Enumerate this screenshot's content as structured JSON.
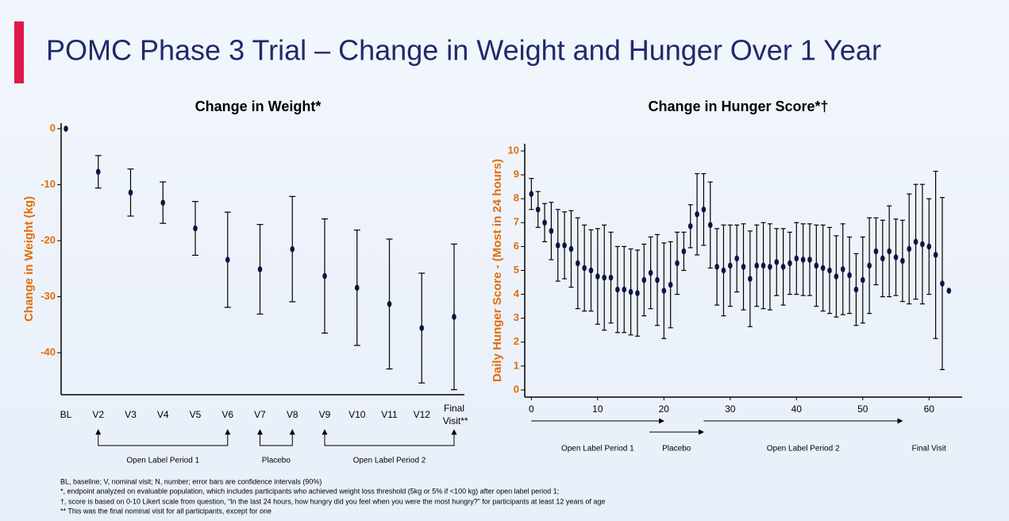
{
  "slide_title": "POMC Phase 3 Trial – Change in Weight and Hunger Over 1 Year",
  "chart_data": [
    {
      "type": "errorbar",
      "title": "Change in Weight*",
      "y_label": "Change in Weight (kg)",
      "categories": [
        "BL",
        "V2",
        "V3",
        "V4",
        "V5",
        "V6",
        "V7",
        "V8",
        "V9",
        "V10",
        "V11",
        "V12",
        "Final Visit**"
      ],
      "values": [
        0,
        -7.7,
        -11.4,
        -13.2,
        -17.8,
        -23.4,
        -25.1,
        -21.5,
        -26.3,
        -28.4,
        -31.3,
        -35.6,
        -33.6
      ],
      "errors": [
        0,
        2.9,
        4.2,
        3.7,
        4.8,
        8.5,
        8,
        9.4,
        10.2,
        10.3,
        11.6,
        9.8,
        13
      ],
      "color": "#0d1540",
      "ylim": [
        -47.5,
        1
      ],
      "yticks": [
        0,
        -10,
        -20,
        -30,
        -40
      ],
      "periods": [
        {
          "label": "Open Label Period 1",
          "start": "V2",
          "end": "V6"
        },
        {
          "label": "Placebo",
          "start": "V7",
          "end": "V8"
        },
        {
          "label": "Open Label Period 2",
          "start": "V9",
          "end": "Final Visit**"
        }
      ]
    },
    {
      "type": "errorbar",
      "title": "Change in Hunger Score*†",
      "y_label": "Daily Hunger Score - (Most in 24 hours)",
      "x": [
        0,
        1,
        2,
        3,
        4,
        5,
        6,
        7,
        8,
        9,
        10,
        11,
        12,
        13,
        14,
        15,
        16,
        17,
        18,
        19,
        20,
        21,
        22,
        23,
        24,
        25,
        26,
        27,
        28,
        29,
        30,
        31,
        32,
        33,
        34,
        35,
        36,
        37,
        38,
        39,
        40,
        41,
        42,
        43,
        44,
        45,
        46,
        47,
        48,
        49,
        50,
        51,
        52,
        53,
        54,
        55,
        56,
        57,
        58,
        59,
        60,
        61,
        62,
        63
      ],
      "values": [
        8.2,
        7.55,
        7.0,
        6.65,
        6.05,
        6.05,
        5.9,
        5.3,
        5.1,
        5.0,
        4.75,
        4.7,
        4.7,
        4.2,
        4.2,
        4.1,
        4.05,
        4.6,
        4.9,
        4.6,
        4.15,
        4.4,
        5.3,
        5.8,
        6.85,
        7.35,
        7.55,
        6.9,
        5.15,
        5.0,
        5.2,
        5.5,
        5.15,
        4.65,
        5.2,
        5.2,
        5.15,
        5.35,
        5.15,
        5.3,
        5.5,
        5.45,
        5.45,
        5.2,
        5.1,
        5.0,
        4.75,
        5.05,
        4.8,
        4.2,
        4.6,
        5.2,
        5.8,
        5.5,
        5.8,
        5.55,
        5.4,
        5.9,
        6.2,
        6.1,
        6.0,
        5.65,
        4.45,
        4.15
      ],
      "errors": [
        0.65,
        0.75,
        0.8,
        1.2,
        1.5,
        1.4,
        1.6,
        1.9,
        1.8,
        1.7,
        2.0,
        2.2,
        1.9,
        1.8,
        1.8,
        1.8,
        1.8,
        1.5,
        1.5,
        1.9,
        2.0,
        1.8,
        1.3,
        0.8,
        0.9,
        1.7,
        1.5,
        1.8,
        1.6,
        1.9,
        1.7,
        1.4,
        1.8,
        2.0,
        1.7,
        1.8,
        1.8,
        1.4,
        1.6,
        1.3,
        1.5,
        1.5,
        1.5,
        1.7,
        1.8,
        1.8,
        1.7,
        1.9,
        1.6,
        1.5,
        1.8,
        2.0,
        1.4,
        1.6,
        1.9,
        1.6,
        1.7,
        2.3,
        2.4,
        2.5,
        2.0,
        3.5,
        3.6,
        0
      ],
      "color": "#0d1540",
      "xlim": [
        -1,
        65
      ],
      "xticks": [
        0,
        10,
        20,
        30,
        40,
        50,
        60
      ],
      "ylim": [
        -0.3,
        10.3
      ],
      "yticks": [
        0,
        1,
        2,
        3,
        4,
        5,
        6,
        7,
        8,
        9,
        10
      ],
      "periods": [
        {
          "label": "Open Label Period 1",
          "start": 0,
          "end": 20
        },
        {
          "label": "Placebo",
          "start": 17.8,
          "end": 26
        },
        {
          "label": "Open Label Period 2",
          "start": 26,
          "end": 56
        }
      ],
      "annotations": [
        {
          "text": "Final Visit",
          "x": 60
        }
      ]
    }
  ],
  "footnotes": [
    "BL, baseline; V, nominal visit; N, number; error bars are confidence intervals (90%)",
    "*, endpoint analyzed on evaluable population, which includes participants who achieved weight loss threshold (5kg or 5% if <100 kg) after open label period 1;",
    "†, score is based on 0-10 Likert scale from question, “In the last 24 hours, how hungry did you feel when you were the most hungry?” for participants at least 12 years of age",
    "** This was the final nominal visit for all participants, except for one"
  ]
}
